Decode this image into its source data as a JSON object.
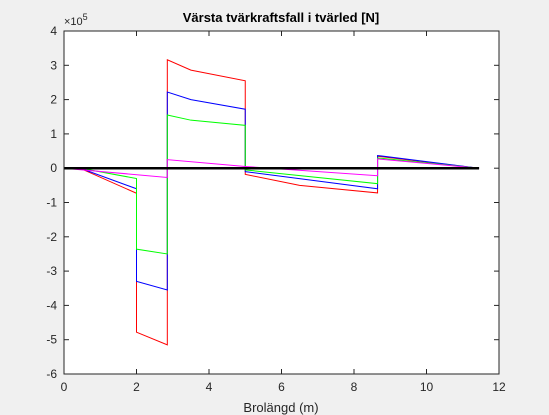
{
  "chart_data": {
    "type": "line",
    "title": "Värsta tvärkraftsfall i tvärled [N]",
    "x_label": "Brolängd (m)",
    "y_multiplier": {
      "base": "×10",
      "exponent": "5"
    },
    "xlim": [
      0,
      12
    ],
    "xticks": [
      0,
      2,
      4,
      6,
      8,
      10,
      12
    ],
    "ylim": [
      -6,
      4
    ],
    "yticks": [
      -6,
      -5,
      -4,
      -3,
      -2,
      -1,
      0,
      1,
      2,
      3,
      4
    ],
    "grid": false,
    "series": [
      {
        "color": "#ff0000",
        "width": 1,
        "x": [
          0,
          0.5,
          2,
          2,
          2.85,
          2.85,
          3.5,
          5,
          5,
          6.5,
          8.65,
          8.65,
          11.45
        ],
        "values": [
          0,
          -0.03,
          -0.73,
          -4.78,
          -5.15,
          3.16,
          2.86,
          2.55,
          -0.18,
          -0.5,
          -0.72,
          0.35,
          0
        ]
      },
      {
        "color": "#0000ff",
        "width": 1,
        "x": [
          0,
          0.5,
          2,
          2,
          2.85,
          2.85,
          3.5,
          5,
          5,
          8.65,
          8.65,
          11.45
        ],
        "values": [
          0,
          -0.02,
          -0.6,
          -3.3,
          -3.55,
          2.22,
          2.0,
          1.72,
          -0.1,
          -0.6,
          0.37,
          0
        ]
      },
      {
        "color": "#00ff00",
        "width": 1,
        "x": [
          0,
          0.5,
          2,
          2,
          2.85,
          2.85,
          3.5,
          5,
          5,
          8.65,
          8.65,
          11.45
        ],
        "values": [
          0,
          -0.01,
          -0.3,
          -2.36,
          -2.5,
          1.55,
          1.4,
          1.25,
          -0.05,
          -0.45,
          0.3,
          0
        ]
      },
      {
        "color": "#ff00ff",
        "width": 1,
        "x": [
          0,
          2.85,
          2.85,
          5,
          8.65,
          8.65,
          11.45
        ],
        "values": [
          0,
          -0.27,
          0.25,
          0.05,
          -0.22,
          0.27,
          0
        ]
      },
      {
        "color": "#000000",
        "width": 2.5,
        "x": [
          0,
          11.45
        ],
        "values": [
          0,
          0
        ]
      }
    ]
  }
}
